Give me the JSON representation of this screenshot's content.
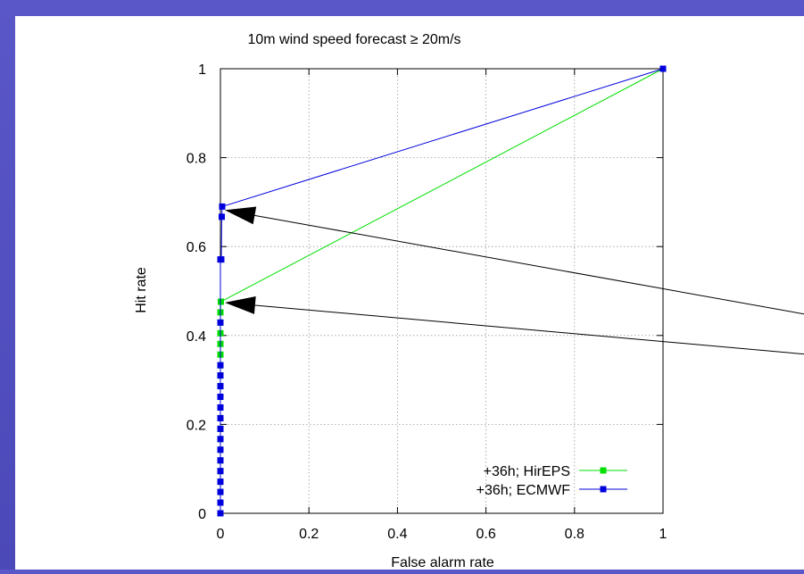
{
  "chart_data": {
    "type": "line",
    "title": "10m wind speed forecast ≥ 20m/s",
    "xlabel": "False alarm rate",
    "ylabel": "Hit rate",
    "xlim": [
      0,
      1
    ],
    "ylim": [
      0,
      1
    ],
    "xticks": [
      "0",
      "0.2",
      "0.4",
      "0.6",
      "0.8",
      "1"
    ],
    "yticks": [
      "0",
      "0.2",
      "0.4",
      "0.6",
      "0.8",
      "1"
    ],
    "grid": true,
    "legend_position": "bottom-right",
    "series": [
      {
        "name": "+36h; HirEPS",
        "color": "#00e000",
        "x": [
          0,
          0,
          0,
          0,
          0,
          0,
          0,
          0,
          0,
          0,
          0,
          0,
          0,
          0,
          0,
          0,
          0,
          0,
          0,
          0.001,
          0.001,
          1
        ],
        "y": [
          0,
          0.048,
          0.071,
          0.095,
          0.119,
          0.143,
          0.167,
          0.19,
          0.214,
          0.238,
          0.262,
          0.286,
          0.31,
          0.333,
          0.357,
          0.381,
          0.405,
          0.429,
          0.452,
          0.476,
          0.476,
          1
        ]
      },
      {
        "name": "+36h; ECMWF",
        "color": "#0000dd",
        "x": [
          0,
          0,
          0,
          0,
          0,
          0,
          0,
          0,
          0,
          0,
          0,
          0,
          0,
          0,
          0,
          0,
          0,
          0.002,
          0.003,
          0.004,
          1
        ],
        "y": [
          0,
          0.024,
          0.048,
          0.071,
          0.095,
          0.119,
          0.143,
          0.167,
          0.19,
          0.214,
          0.238,
          0.262,
          0.286,
          0.31,
          0.333,
          0.429,
          0.571,
          0.571,
          0.667,
          0.69,
          1
        ]
      }
    ],
    "annotations": [
      {
        "type": "arrow",
        "from": [
          1.32,
          0.448
        ],
        "to": [
          0.01,
          0.682
        ]
      },
      {
        "type": "arrow",
        "from": [
          1.32,
          0.358
        ],
        "to": [
          0.01,
          0.474
        ]
      }
    ]
  }
}
